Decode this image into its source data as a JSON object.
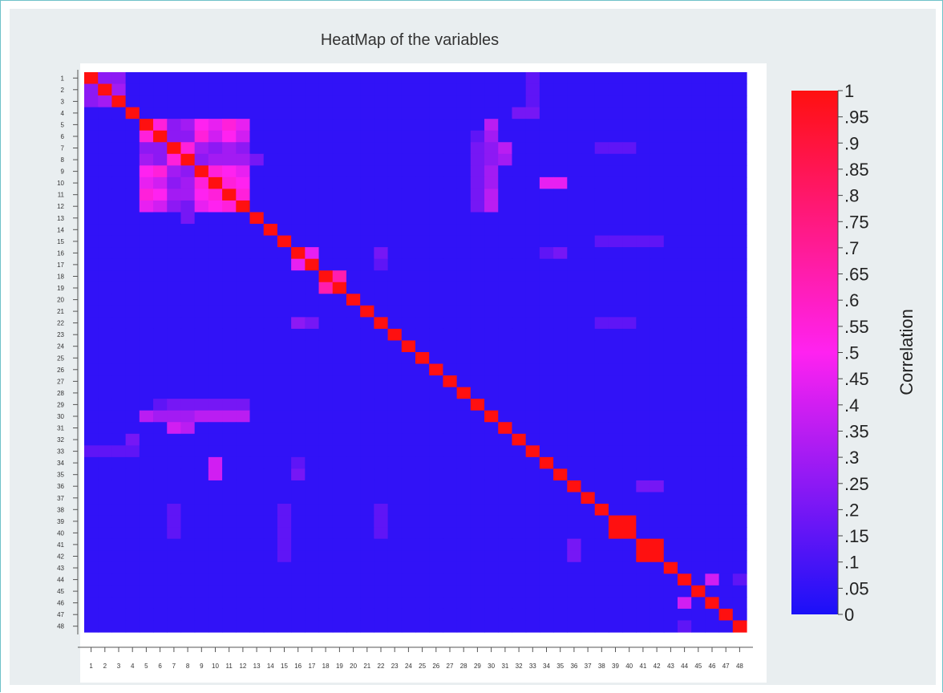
{
  "chart_data": {
    "type": "heatmap",
    "title": "HeatMap of the variables",
    "n": 48,
    "row_labels": [
      "1",
      "2",
      "3",
      "4",
      "5",
      "6",
      "7",
      "8",
      "9",
      "10",
      "11",
      "12",
      "13",
      "14",
      "15",
      "16",
      "17",
      "18",
      "19",
      "20",
      "21",
      "22",
      "23",
      "24",
      "25",
      "26",
      "27",
      "28",
      "29",
      "30",
      "31",
      "32",
      "33",
      "34",
      "35",
      "36",
      "37",
      "38",
      "39",
      "40",
      "41",
      "42",
      "43",
      "44",
      "45",
      "46",
      "47",
      "48"
    ],
    "col_labels": [
      "1",
      "2",
      "3",
      "4",
      "5",
      "6",
      "7",
      "8",
      "9",
      "10",
      "11",
      "12",
      "13",
      "14",
      "15",
      "16",
      "17",
      "18",
      "19",
      "20",
      "21",
      "22",
      "23",
      "24",
      "25",
      "26",
      "27",
      "28",
      "29",
      "30",
      "31",
      "32",
      "33",
      "34",
      "35",
      "36",
      "37",
      "38",
      "39",
      "40",
      "41",
      "42",
      "43",
      "44",
      "45",
      "46",
      "47",
      "48"
    ],
    "diagonal_value": 1,
    "base_value": 0.05,
    "cells": [
      {
        "r": 1,
        "c": 2,
        "v": 0.25
      },
      {
        "r": 1,
        "c": 3,
        "v": 0.25
      },
      {
        "r": 2,
        "c": 3,
        "v": 0.3
      },
      {
        "r": 5,
        "c": 6,
        "v": 0.55
      },
      {
        "r": 5,
        "c": 7,
        "v": 0.25
      },
      {
        "r": 5,
        "c": 8,
        "v": 0.3
      },
      {
        "r": 5,
        "c": 9,
        "v": 0.5
      },
      {
        "r": 5,
        "c": 10,
        "v": 0.45
      },
      {
        "r": 5,
        "c": 11,
        "v": 0.55
      },
      {
        "r": 5,
        "c": 12,
        "v": 0.45
      },
      {
        "r": 6,
        "c": 7,
        "v": 0.25
      },
      {
        "r": 6,
        "c": 8,
        "v": 0.25
      },
      {
        "r": 6,
        "c": 9,
        "v": 0.55
      },
      {
        "r": 6,
        "c": 10,
        "v": 0.4
      },
      {
        "r": 6,
        "c": 11,
        "v": 0.5
      },
      {
        "r": 6,
        "c": 12,
        "v": 0.4
      },
      {
        "r": 7,
        "c": 8,
        "v": 0.55
      },
      {
        "r": 7,
        "c": 9,
        "v": 0.3
      },
      {
        "r": 7,
        "c": 10,
        "v": 0.25
      },
      {
        "r": 7,
        "c": 11,
        "v": 0.3
      },
      {
        "r": 7,
        "c": 12,
        "v": 0.25
      },
      {
        "r": 8,
        "c": 9,
        "v": 0.25
      },
      {
        "r": 8,
        "c": 10,
        "v": 0.3
      },
      {
        "r": 8,
        "c": 11,
        "v": 0.3
      },
      {
        "r": 8,
        "c": 12,
        "v": 0.3
      },
      {
        "r": 8,
        "c": 13,
        "v": 0.2
      },
      {
        "r": 9,
        "c": 10,
        "v": 0.55
      },
      {
        "r": 9,
        "c": 11,
        "v": 0.5
      },
      {
        "r": 9,
        "c": 12,
        "v": 0.45
      },
      {
        "r": 10,
        "c": 11,
        "v": 0.55
      },
      {
        "r": 10,
        "c": 12,
        "v": 0.5
      },
      {
        "r": 11,
        "c": 12,
        "v": 0.55
      },
      {
        "r": 12,
        "c": 8,
        "v": 0.2
      },
      {
        "r": 5,
        "c": 30,
        "v": 0.35
      },
      {
        "r": 6,
        "c": 30,
        "v": 0.3
      },
      {
        "r": 7,
        "c": 30,
        "v": 0.25
      },
      {
        "r": 7,
        "c": 31,
        "v": 0.35
      },
      {
        "r": 8,
        "c": 30,
        "v": 0.25
      },
      {
        "r": 8,
        "c": 31,
        "v": 0.3
      },
      {
        "r": 9,
        "c": 30,
        "v": 0.3
      },
      {
        "r": 10,
        "c": 30,
        "v": 0.3
      },
      {
        "r": 11,
        "c": 30,
        "v": 0.35
      },
      {
        "r": 12,
        "c": 30,
        "v": 0.35
      },
      {
        "r": 12,
        "c": 29,
        "v": 0.2
      },
      {
        "r": 6,
        "c": 29,
        "v": 0.15
      },
      {
        "r": 10,
        "c": 34,
        "v": 0.45
      },
      {
        "r": 10,
        "c": 35,
        "v": 0.45
      },
      {
        "r": 16,
        "c": 17,
        "v": 0.45
      },
      {
        "r": 16,
        "c": 22,
        "v": 0.2
      },
      {
        "r": 17,
        "c": 22,
        "v": 0.15
      },
      {
        "r": 18,
        "c": 19,
        "v": 0.65
      },
      {
        "r": 22,
        "c": 16,
        "v": 0.25
      },
      {
        "r": 22,
        "c": 17,
        "v": 0.2
      },
      {
        "r": 30,
        "c": 5,
        "v": 0.35
      },
      {
        "r": 30,
        "c": 6,
        "v": 0.3
      },
      {
        "r": 30,
        "c": 7,
        "v": 0.3
      },
      {
        "r": 30,
        "c": 8,
        "v": 0.3
      },
      {
        "r": 30,
        "c": 9,
        "v": 0.35
      },
      {
        "r": 30,
        "c": 10,
        "v": 0.35
      },
      {
        "r": 30,
        "c": 11,
        "v": 0.35
      },
      {
        "r": 30,
        "c": 12,
        "v": 0.35
      },
      {
        "r": 29,
        "c": 7,
        "v": 0.2
      },
      {
        "r": 29,
        "c": 8,
        "v": 0.2
      },
      {
        "r": 29,
        "c": 9,
        "v": 0.2
      },
      {
        "r": 29,
        "c": 10,
        "v": 0.2
      },
      {
        "r": 29,
        "c": 11,
        "v": 0.2
      },
      {
        "r": 29,
        "c": 12,
        "v": 0.2
      },
      {
        "r": 31,
        "c": 7,
        "v": 0.4
      },
      {
        "r": 31,
        "c": 8,
        "v": 0.35
      },
      {
        "r": 32,
        "c": 4,
        "v": 0.2
      },
      {
        "r": 33,
        "c": 1,
        "v": 0.15
      },
      {
        "r": 33,
        "c": 2,
        "v": 0.15
      },
      {
        "r": 33,
        "c": 3,
        "v": 0.15
      },
      {
        "r": 33,
        "c": 4,
        "v": 0.15
      },
      {
        "r": 34,
        "c": 10,
        "v": 0.4
      },
      {
        "r": 35,
        "c": 10,
        "v": 0.4
      },
      {
        "r": 34,
        "c": 16,
        "v": 0.15
      },
      {
        "r": 35,
        "c": 16,
        "v": 0.2
      },
      {
        "r": 36,
        "c": 41,
        "v": 0.2
      },
      {
        "r": 36,
        "c": 42,
        "v": 0.2
      },
      {
        "r": 39,
        "c": 40,
        "v": 1
      },
      {
        "r": 40,
        "c": 39,
        "v": 1
      },
      {
        "r": 41,
        "c": 42,
        "v": 1
      },
      {
        "r": 42,
        "c": 41,
        "v": 1
      },
      {
        "r": 44,
        "c": 46,
        "v": 0.4
      },
      {
        "r": 46,
        "c": 44,
        "v": 0.4
      },
      {
        "r": 44,
        "c": 48,
        "v": 0.15
      },
      {
        "r": 15,
        "c": 38,
        "v": 0.15
      },
      {
        "r": 15,
        "c": 39,
        "v": 0.15
      },
      {
        "r": 15,
        "c": 40,
        "v": 0.15
      },
      {
        "r": 15,
        "c": 41,
        "v": 0.15
      },
      {
        "r": 15,
        "c": 42,
        "v": 0.15
      },
      {
        "r": 22,
        "c": 38,
        "v": 0.15
      },
      {
        "r": 22,
        "c": 39,
        "v": 0.15
      },
      {
        "r": 22,
        "c": 40,
        "v": 0.15
      },
      {
        "r": 7,
        "c": 38,
        "v": 0.15
      },
      {
        "r": 7,
        "c": 39,
        "v": 0.15
      },
      {
        "r": 7,
        "c": 40,
        "v": 0.15
      },
      {
        "r": 4,
        "c": 32,
        "v": 0.2
      },
      {
        "r": 4,
        "c": 33,
        "v": 0.2
      }
    ],
    "colorbar": {
      "title": "Correlation",
      "ticks": [
        "1",
        ".95",
        ".9",
        ".85",
        ".8",
        ".75",
        ".7",
        ".65",
        ".6",
        ".55",
        ".5",
        ".45",
        ".4",
        ".35",
        ".3",
        ".25",
        ".2",
        ".15",
        ".1",
        ".05",
        "0"
      ],
      "range": [
        0,
        1
      ],
      "position": "right"
    },
    "color_low": "#1a10f8",
    "color_mid": "#ff22f0",
    "color_high": "#ff1010"
  }
}
